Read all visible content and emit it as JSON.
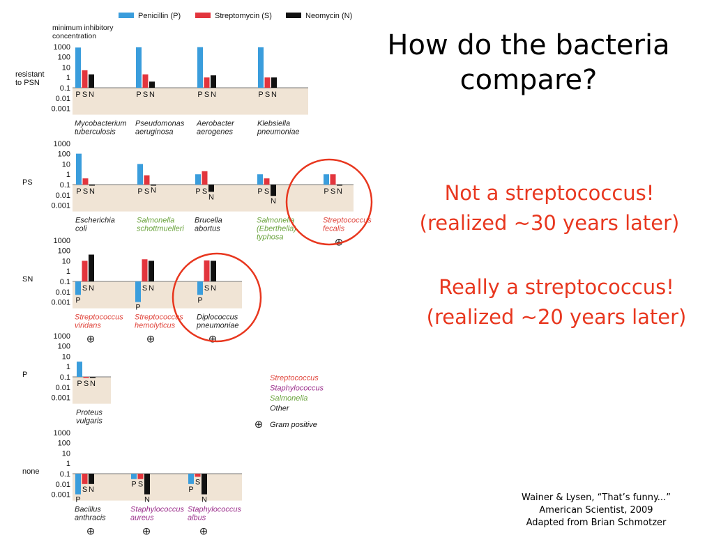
{
  "slide": {
    "title": "How do the bacteria compare?",
    "note_1": [
      "Not a streptococcus!",
      "(realized ~30 years later)"
    ],
    "note_2": [
      "Really a streptococcus!",
      "(realized ~20 years later)"
    ],
    "citation": [
      "Wainer & Lysen, “That’s funny...”",
      "American Scientist, 2009",
      "Adapted from Brian Schmotzer"
    ]
  },
  "chart_data": {
    "type": "bar",
    "y_axis_title": [
      "minimum inhibitory",
      "concentration"
    ],
    "y_scale": "log",
    "y_ticks": [
      1000,
      100,
      10,
      1,
      0.1,
      0.01,
      0.001
    ],
    "y_tick_labels": [
      "1000",
      "100",
      "10",
      "1",
      "0.1",
      "0.01",
      "0.001"
    ],
    "baseline": 0.1,
    "ylim": [
      0.001,
      1000
    ],
    "series": [
      {
        "key": "P",
        "name": "Penicillin (P)",
        "color": "#3a9ddc"
      },
      {
        "key": "S",
        "name": "Streptomycin (S)",
        "color": "#e2353d"
      },
      {
        "key": "N",
        "name": "Neomycin (N)",
        "color": "#111111"
      }
    ],
    "groups": [
      {
        "label": "resistant\nto PSN",
        "bacteria": [
          {
            "name": "Mycobacterium\ntuberculosis",
            "type": "other",
            "values": [
              800,
              5,
              2
            ]
          },
          {
            "name": "Pseudomonas\naeruginosa",
            "type": "other",
            "values": [
              850,
              2,
              0.4
            ]
          },
          {
            "name": "Aerobacter\naerogenes",
            "type": "other",
            "values": [
              870,
              1,
              1.6
            ]
          },
          {
            "name": "Klebsiella\npneumoniae",
            "type": "other",
            "values": [
              850,
              1,
              1
            ]
          }
        ]
      },
      {
        "label": "PS",
        "bacteria": [
          {
            "name": "Escherichia\ncoli",
            "type": "other",
            "values": [
              100,
              0.4,
              0.1
            ]
          },
          {
            "name": "Salmonella\nschottmuelleri",
            "type": "salmonella",
            "values": [
              10,
              0.8,
              0.09
            ]
          },
          {
            "name": "Brucella\nabortus",
            "type": "other",
            "values": [
              1,
              2,
              0.02
            ]
          },
          {
            "name": "Salmonella\n(Eberthella)\ntyphosa",
            "type": "salmonella",
            "values": [
              1,
              0.4,
              0.008
            ]
          },
          {
            "name": "Streptococcus\nfecalis",
            "type": "streptococcus",
            "gram_positive": true,
            "values": [
              1,
              1,
              0.1
            ]
          }
        ]
      },
      {
        "label": "SN",
        "bacteria": [
          {
            "name": "Streptococcus\nviridans",
            "type": "streptococcus",
            "gram_positive": true,
            "values": [
              0.005,
              10,
              40
            ]
          },
          {
            "name": "Streptococcus\nhemolyticus",
            "type": "streptococcus",
            "gram_positive": true,
            "values": [
              0.001,
              14,
              10
            ]
          },
          {
            "name": "Diplococcus\npneumoniae",
            "type": "other",
            "gram_positive": true,
            "values": [
              0.005,
              11,
              10
            ]
          }
        ]
      },
      {
        "label": "P",
        "bacteria": [
          {
            "name": "Proteus\nvulgaris",
            "type": "other",
            "values": [
              3,
              0.1,
              0.1
            ]
          }
        ]
      },
      {
        "label": "none",
        "bacteria": [
          {
            "name": "Bacillus\nanthracis",
            "type": "other",
            "gram_positive": true,
            "values": [
              0.001,
              0.01,
              0.01
            ]
          },
          {
            "name": "Staphylococcus\naureus",
            "type": "staphylococcus",
            "gram_positive": true,
            "values": [
              0.03,
              0.03,
              0.001
            ]
          },
          {
            "name": "Staphylococcus\nalbus",
            "type": "staphylococcus",
            "gram_positive": true,
            "values": [
              0.01,
              0.05,
              0.001
            ]
          }
        ]
      }
    ],
    "type_colors": {
      "streptococcus": "#e0453c",
      "staphylococcus": "#9b2f8c",
      "salmonella": "#6aa33d",
      "other": "#222222"
    },
    "type_legend": [
      {
        "text": "Streptococcus",
        "type": "streptococcus"
      },
      {
        "text": "Staphylococcus",
        "type": "staphylococcus"
      },
      {
        "text": "Salmonella",
        "type": "salmonella"
      },
      {
        "text": "Other",
        "type": "other"
      }
    ],
    "gram_positive_label": "Gram positive",
    "gram_positive_symbol": "⊕",
    "axis_letters": [
      "P",
      "S",
      "N"
    ],
    "highlight_color": "#e8371f",
    "panel_color": "#f0e4d5"
  }
}
